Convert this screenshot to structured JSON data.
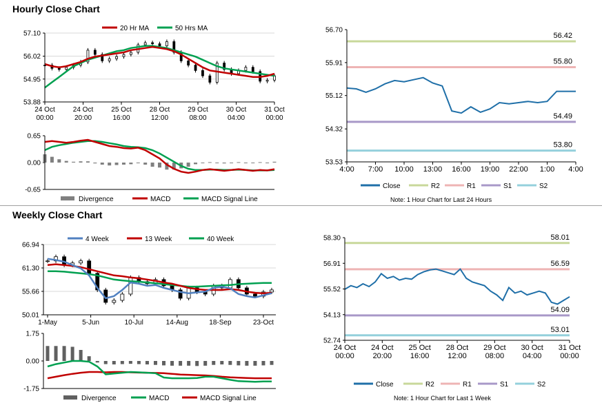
{
  "titles": {
    "hourly": "Hourly Close Chart",
    "weekly": "Weekly Close Chart"
  },
  "chart_data": [
    {
      "type": "line",
      "title": "",
      "x_labels": [
        [
          "24 Oct",
          "00:00"
        ],
        [
          "24 Oct",
          "20:00"
        ],
        [
          "25 Oct",
          "16:00"
        ],
        [
          "28 Oct",
          "12:00"
        ],
        [
          "29 Oct",
          "08:00"
        ],
        [
          "30 Oct",
          "04:00"
        ],
        [
          "31 Oct",
          "00:00"
        ]
      ],
      "y_ticks": [
        "57.10",
        "56.02",
        "54.95",
        "53.88"
      ],
      "ylim": [
        53.88,
        57.1
      ],
      "legend": [
        "20 Hr MA",
        "50 Hrs MA"
      ],
      "legend_position": "top",
      "colors": {
        "20 Hr MA": "#c00000",
        "50 Hrs MA": "#00a050",
        "price": "#000000"
      },
      "series": [
        {
          "name": "20 Hr MA",
          "values": [
            55.65,
            55.55,
            55.5,
            55.55,
            55.65,
            55.75,
            55.9,
            56.0,
            56.05,
            56.1,
            56.15,
            56.2,
            56.3,
            56.35,
            56.4,
            56.45,
            56.4,
            56.35,
            56.25,
            56.1,
            55.9,
            55.7,
            55.5,
            55.35,
            55.3,
            55.25,
            55.2,
            55.15,
            55.1,
            55.05,
            55.05,
            55.1,
            55.2
          ]
        },
        {
          "name": "50 Hrs MA",
          "values": [
            54.55,
            54.8,
            55.05,
            55.3,
            55.55,
            55.7,
            55.85,
            55.95,
            56.05,
            56.15,
            56.25,
            56.3,
            56.4,
            56.45,
            56.5,
            56.5,
            56.45,
            56.4,
            56.3,
            56.2,
            56.1,
            56.0,
            55.85,
            55.7,
            55.55,
            55.45,
            55.4,
            55.35,
            55.3,
            55.25,
            55.2,
            55.15,
            55.1
          ]
        },
        {
          "name": "price",
          "values": [
            55.6,
            55.45,
            55.4,
            55.5,
            55.6,
            55.75,
            56.3,
            56.1,
            55.8,
            55.9,
            56.0,
            56.1,
            56.2,
            56.55,
            56.65,
            56.6,
            56.5,
            56.7,
            56.2,
            55.8,
            55.6,
            55.35,
            55.1,
            54.8,
            55.7,
            55.4,
            55.2,
            55.35,
            55.5,
            55.3,
            54.85,
            54.9,
            55.1
          ]
        }
      ]
    },
    {
      "type": "line",
      "title": "",
      "x_labels": [],
      "y_ticks": [
        "0.65",
        "0.00",
        "-0.65"
      ],
      "ylim": [
        -0.65,
        0.65
      ],
      "legend": [
        "Divergence",
        "MACD",
        "MACD Signal Line"
      ],
      "legend_position": "bottom",
      "colors": {
        "Divergence": "#808080",
        "MACD": "#c00000",
        "MACD Signal Line": "#00a050"
      },
      "series": [
        {
          "name": "MACD",
          "values": [
            0.5,
            0.52,
            0.5,
            0.48,
            0.5,
            0.53,
            0.55,
            0.5,
            0.45,
            0.4,
            0.38,
            0.35,
            0.34,
            0.36,
            0.3,
            0.2,
            0.1,
            -0.05,
            -0.15,
            -0.22,
            -0.25,
            -0.22,
            -0.18,
            -0.16,
            -0.18,
            -0.2,
            -0.18,
            -0.16,
            -0.18,
            -0.2,
            -0.18,
            -0.19,
            -0.16
          ]
        },
        {
          "name": "MACD Signal Line",
          "values": [
            0.3,
            0.38,
            0.42,
            0.45,
            0.48,
            0.5,
            0.52,
            0.52,
            0.5,
            0.47,
            0.44,
            0.4,
            0.38,
            0.37,
            0.35,
            0.3,
            0.22,
            0.12,
            0.02,
            -0.08,
            -0.15,
            -0.18,
            -0.18,
            -0.17,
            -0.17,
            -0.18,
            -0.18,
            -0.17,
            -0.18,
            -0.19,
            -0.19,
            -0.19,
            -0.18
          ]
        },
        {
          "name": "Divergence",
          "values": [
            0.2,
            0.14,
            0.08,
            0.04,
            0.02,
            0.03,
            0.03,
            -0.02,
            -0.05,
            -0.07,
            -0.06,
            -0.05,
            -0.04,
            -0.01,
            -0.05,
            -0.1,
            -0.12,
            -0.17,
            -0.17,
            -0.14,
            -0.1,
            -0.04,
            0.0,
            0.01,
            -0.01,
            -0.02,
            0.0,
            0.01,
            0.0,
            -0.01,
            0.01,
            0.0,
            0.02
          ]
        }
      ]
    },
    {
      "type": "line",
      "title": "",
      "x_labels": [
        "4:00",
        "7:00",
        "10:00",
        "13:00",
        "16:00",
        "19:00",
        "22:00",
        "1:00",
        "4:00"
      ],
      "y_ticks": [
        "56.70",
        "55.91",
        "55.12",
        "54.32",
        "53.53"
      ],
      "ylim": [
        53.53,
        56.7
      ],
      "legend": [
        "Close",
        "R2",
        "R1",
        "S1",
        "S2"
      ],
      "legend_position": "bottom",
      "levels": {
        "R2": 56.42,
        "R1": 55.8,
        "S1": 54.49,
        "S2": 53.8
      },
      "level_labels": {
        "R2": "56.42",
        "R1": "55.80",
        "S1": "54.49",
        "S2": "53.80"
      },
      "colors": {
        "Close": "#1f6fa8",
        "R2": "#c8d89a",
        "R1": "#eeb4b4",
        "S1": "#a898c8",
        "S2": "#94d0dc"
      },
      "series": [
        {
          "name": "Close",
          "values": [
            55.3,
            55.28,
            55.2,
            55.28,
            55.4,
            55.48,
            55.45,
            55.5,
            55.55,
            55.42,
            55.35,
            54.75,
            54.7,
            54.85,
            54.72,
            54.8,
            54.95,
            54.92,
            54.95,
            54.98,
            54.95,
            54.98,
            55.22,
            55.22,
            55.22
          ]
        }
      ],
      "note": "Note: 1 Hour Chart for Last 24 Hours"
    },
    {
      "type": "line",
      "title": "",
      "x_labels": [
        "1-May",
        "5-Jun",
        "10-Jul",
        "14-Aug",
        "18-Sep",
        "23-Oct"
      ],
      "y_ticks": [
        "66.94",
        "61.30",
        "55.66",
        "50.01"
      ],
      "ylim": [
        50.01,
        66.94
      ],
      "legend": [
        "4 Week",
        "13 Week",
        "40 Week"
      ],
      "legend_position": "top",
      "colors": {
        "4 Week": "#5080c0",
        "13 Week": "#c00000",
        "40 Week": "#00a050",
        "price": "#000000"
      },
      "series": [
        {
          "name": "4 Week",
          "values": [
            63.5,
            63.2,
            62.8,
            62.0,
            61.2,
            59.5,
            56.5,
            54.0,
            54.5,
            56.0,
            57.8,
            57.5,
            57.0,
            57.2,
            56.5,
            56.0,
            55.5,
            55.2,
            55.4,
            55.6,
            56.5,
            56.8,
            56.4,
            55.0,
            54.5,
            54.2,
            54.7,
            55.2
          ]
        },
        {
          "name": "13 Week",
          "values": [
            62.0,
            62.2,
            62.0,
            61.8,
            61.5,
            61.0,
            60.5,
            60.0,
            59.5,
            59.3,
            59.0,
            58.8,
            58.5,
            58.2,
            57.8,
            57.5,
            57.0,
            56.5,
            56.2,
            56.0,
            56.0,
            56.0,
            56.2,
            56.0,
            55.6,
            55.3,
            55.2,
            55.3
          ]
        },
        {
          "name": "40 Week",
          "values": [
            60.5,
            60.5,
            60.4,
            60.2,
            60.0,
            59.8,
            59.5,
            59.0,
            58.5,
            58.3,
            58.1,
            58.0,
            57.8,
            57.6,
            57.4,
            57.2,
            57.0,
            56.8,
            56.8,
            56.9,
            57.0,
            57.1,
            57.2,
            57.4,
            57.5,
            57.6,
            57.7,
            57.7
          ]
        },
        {
          "name": "price",
          "values": [
            63.0,
            64.0,
            62.0,
            62.5,
            63.0,
            60.0,
            56.0,
            53.0,
            53.5,
            55.0,
            59.0,
            58.0,
            57.5,
            58.5,
            57.0,
            56.0,
            54.0,
            56.5,
            55.5,
            55.0,
            57.0,
            56.5,
            58.5,
            56.5,
            55.0,
            54.5,
            55.5,
            56.0
          ]
        }
      ]
    },
    {
      "type": "bar",
      "title": "",
      "x_labels": [],
      "y_ticks": [
        "1.75",
        "0.00",
        "-1.75"
      ],
      "ylim": [
        -1.75,
        1.75
      ],
      "legend": [
        "Divergence",
        "MACD",
        "MACD Signal Line"
      ],
      "legend_position": "bottom",
      "colors": {
        "Divergence": "#606060",
        "MACD": "#00a050",
        "MACD Signal Line": "#c00000"
      },
      "series": [
        {
          "name": "Divergence",
          "values": [
            0.95,
            0.95,
            0.95,
            0.9,
            0.7,
            0.3,
            -0.1,
            -0.2,
            -0.22,
            -0.2,
            -0.18,
            -0.2,
            -0.22,
            -0.25,
            -0.28,
            -0.3,
            -0.3,
            -0.3,
            -0.32,
            -0.3,
            -0.25,
            -0.22,
            -0.25,
            -0.28,
            -0.3,
            -0.3,
            -0.28,
            -0.25
          ]
        },
        {
          "name": "MACD",
          "values": [
            -0.35,
            -0.2,
            -0.1,
            0.0,
            0.0,
            -0.05,
            -0.35,
            -0.85,
            -0.8,
            -0.75,
            -0.7,
            -0.72,
            -0.75,
            -0.78,
            -1.05,
            -1.1,
            -1.1,
            -1.1,
            -1.08,
            -1.0,
            -1.0,
            -1.1,
            -1.2,
            -1.28,
            -1.3,
            -1.32,
            -1.3,
            -1.3
          ]
        },
        {
          "name": "MACD Signal Line",
          "values": [
            -1.1,
            -1.0,
            -0.9,
            -0.82,
            -0.75,
            -0.7,
            -0.7,
            -0.72,
            -0.7,
            -0.7,
            -0.72,
            -0.74,
            -0.75,
            -0.76,
            -0.78,
            -0.82,
            -0.86,
            -0.88,
            -0.9,
            -0.92,
            -0.95,
            -1.0,
            -1.04,
            -1.06,
            -1.08,
            -1.1,
            -1.1,
            -1.1
          ]
        }
      ]
    },
    {
      "type": "line",
      "title": "",
      "x_labels": [
        [
          "24 Oct",
          "00:00"
        ],
        [
          "24 Oct",
          "20:00"
        ],
        [
          "25 Oct",
          "16:00"
        ],
        [
          "28 Oct",
          "12:00"
        ],
        [
          "29 Oct",
          "08:00"
        ],
        [
          "30 Oct",
          "04:00"
        ],
        [
          "31 Oct",
          "00:00"
        ]
      ],
      "y_ticks": [
        "58.30",
        "56.91",
        "55.52",
        "54.13",
        "52.74"
      ],
      "ylim": [
        52.74,
        58.3
      ],
      "legend": [
        "Close",
        "R2",
        "R1",
        "S1",
        "S2"
      ],
      "legend_position": "bottom",
      "levels": {
        "R2": 58.01,
        "R1": 56.59,
        "S1": 54.09,
        "S2": 53.01
      },
      "level_labels": {
        "R2": "58.01",
        "R1": "56.59",
        "S1": "54.09",
        "S2": "53.01"
      },
      "colors": {
        "Close": "#1f6fa8",
        "R2": "#c8d89a",
        "R1": "#eeb4b4",
        "S1": "#a898c8",
        "S2": "#94d0dc"
      },
      "series": [
        {
          "name": "Close",
          "values": [
            55.5,
            55.7,
            55.6,
            55.8,
            55.65,
            55.9,
            56.35,
            56.1,
            56.2,
            56.0,
            56.1,
            56.05,
            56.3,
            56.45,
            56.55,
            56.6,
            56.5,
            56.4,
            56.3,
            56.6,
            56.1,
            55.9,
            55.8,
            55.7,
            55.4,
            55.2,
            54.9,
            55.6,
            55.3,
            55.4,
            55.2,
            55.3,
            55.4,
            55.3,
            54.8,
            54.7,
            54.9,
            55.1
          ]
        }
      ],
      "note": "Note: 1 Hour Chart for Last 1 Week"
    }
  ]
}
